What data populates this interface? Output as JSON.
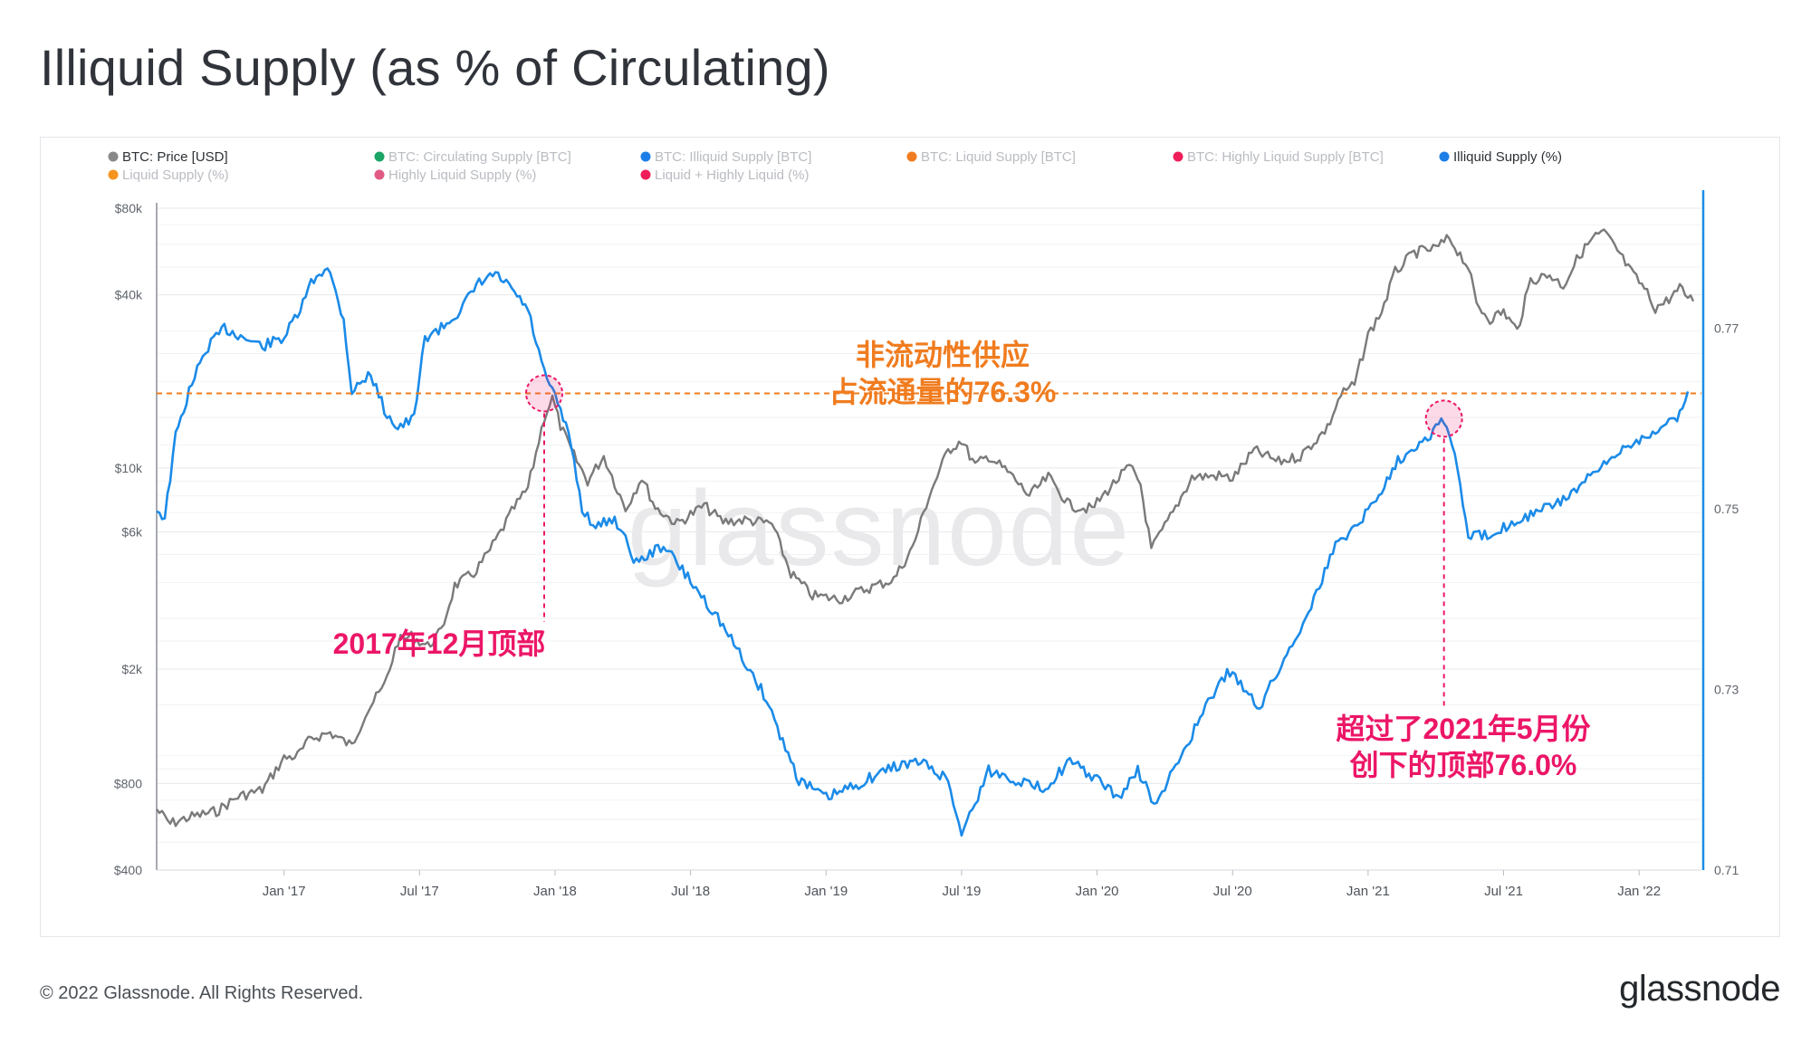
{
  "title": "Illiquid Supply (as % of Circulating)",
  "footer": {
    "copyright": "© 2022 Glassnode. All Rights Reserved.",
    "logo": "glassnode"
  },
  "chart_data": {
    "type": "line",
    "title": "Illiquid Supply (as % of Circulating)",
    "watermark": "glassnode",
    "legend": [
      {
        "label": "BTC: Price [USD]",
        "color": "#888888",
        "active": true
      },
      {
        "label": "BTC: Circulating Supply [BTC]",
        "color": "#1aa564",
        "active": false
      },
      {
        "label": "BTC: Illiquid Supply [BTC]",
        "color": "#1b7ee8",
        "active": false
      },
      {
        "label": "BTC: Liquid Supply [BTC]",
        "color": "#f07c1f",
        "active": false
      },
      {
        "label": "BTC: Highly Liquid Supply [BTC]",
        "color": "#ef1d5a",
        "active": false
      },
      {
        "label": "Illiquid Supply (%)",
        "color": "#1b7ee8",
        "active": true
      },
      {
        "label": "Liquid Supply (%)",
        "color": "#f5941f",
        "active": false
      },
      {
        "label": "Highly Liquid Supply (%)",
        "color": "#e05a83",
        "active": false
      },
      {
        "label": "Liquid + Highly Liquid (%)",
        "color": "#ef1d5a",
        "active": false
      }
    ],
    "x_ticks": [
      "Jan '17",
      "Jul '17",
      "Jan '18",
      "Jul '18",
      "Jan '19",
      "Jul '19",
      "Jan '20",
      "Jul '20",
      "Jan '21",
      "Jul '21",
      "Jan '22"
    ],
    "x_tick_years": [
      2017.0,
      2017.5,
      2018.0,
      2018.5,
      2019.0,
      2019.5,
      2020.0,
      2020.5,
      2021.0,
      2021.5,
      2022.0
    ],
    "x_range": [
      2016.53,
      2022.23
    ],
    "y_left": {
      "scale": "log",
      "range": [
        400,
        80000
      ],
      "ticks": [
        {
          "value": 400,
          "label": "$400"
        },
        {
          "value": 800,
          "label": "$800"
        },
        {
          "value": 2000,
          "label": "$2k"
        },
        {
          "value": 6000,
          "label": "$6k"
        },
        {
          "value": 10000,
          "label": "$10k"
        },
        {
          "value": 40000,
          "label": "$40k"
        },
        {
          "value": 80000,
          "label": "$80k"
        }
      ]
    },
    "y_right": {
      "scale": "linear",
      "range": [
        0.71,
        0.7833
      ],
      "ticks": [
        {
          "value": 0.71,
          "label": "0.71"
        },
        {
          "value": 0.73,
          "label": "0.73"
        },
        {
          "value": 0.75,
          "label": "0.75"
        },
        {
          "value": 0.77,
          "label": "0.77"
        }
      ]
    },
    "series": [
      {
        "name": "BTC: Price [USD]",
        "axis": "left",
        "color": "#7a7a7a",
        "points": [
          [
            2016.53,
            650
          ],
          [
            2016.58,
            580
          ],
          [
            2016.65,
            610
          ],
          [
            2016.75,
            640
          ],
          [
            2016.83,
            720
          ],
          [
            2016.92,
            760
          ],
          [
            2017.0,
            980
          ],
          [
            2017.05,
            1000
          ],
          [
            2017.1,
            1150
          ],
          [
            2017.17,
            1200
          ],
          [
            2017.25,
            1080
          ],
          [
            2017.3,
            1400
          ],
          [
            2017.37,
            1750
          ],
          [
            2017.42,
            2500
          ],
          [
            2017.47,
            2600
          ],
          [
            2017.53,
            2400
          ],
          [
            2017.58,
            2700
          ],
          [
            2017.63,
            3900
          ],
          [
            2017.7,
            4300
          ],
          [
            2017.75,
            5000
          ],
          [
            2017.8,
            6000
          ],
          [
            2017.85,
            7300
          ],
          [
            2017.9,
            8500
          ],
          [
            2017.96,
            15000
          ],
          [
            2017.99,
            17500
          ],
          [
            2018.02,
            14000
          ],
          [
            2018.06,
            11500
          ],
          [
            2018.12,
            9000
          ],
          [
            2018.18,
            11000
          ],
          [
            2018.26,
            7200
          ],
          [
            2018.32,
            9300
          ],
          [
            2018.37,
            7300
          ],
          [
            2018.45,
            6400
          ],
          [
            2018.55,
            7400
          ],
          [
            2018.62,
            6500
          ],
          [
            2018.7,
            6600
          ],
          [
            2018.8,
            6400
          ],
          [
            2018.87,
            4300
          ],
          [
            2018.95,
            3600
          ],
          [
            2019.05,
            3500
          ],
          [
            2019.15,
            3800
          ],
          [
            2019.25,
            4100
          ],
          [
            2019.32,
            5300
          ],
          [
            2019.38,
            8000
          ],
          [
            2019.45,
            11500
          ],
          [
            2019.5,
            12500
          ],
          [
            2019.55,
            10200
          ],
          [
            2019.6,
            11000
          ],
          [
            2019.68,
            9500
          ],
          [
            2019.75,
            8000
          ],
          [
            2019.82,
            9300
          ],
          [
            2019.9,
            7400
          ],
          [
            2019.98,
            7200
          ],
          [
            2020.05,
            8600
          ],
          [
            2020.12,
            10100
          ],
          [
            2020.16,
            8800
          ],
          [
            2020.2,
            5200
          ],
          [
            2020.28,
            7000
          ],
          [
            2020.35,
            9300
          ],
          [
            2020.45,
            9400
          ],
          [
            2020.5,
            9200
          ],
          [
            2020.58,
            11500
          ],
          [
            2020.67,
            10500
          ],
          [
            2020.75,
            11000
          ],
          [
            2020.85,
            13800
          ],
          [
            2020.9,
            18000
          ],
          [
            2020.95,
            19500
          ],
          [
            2021.0,
            29000
          ],
          [
            2021.05,
            35000
          ],
          [
            2021.1,
            48000
          ],
          [
            2021.17,
            56000
          ],
          [
            2021.25,
            58000
          ],
          [
            2021.3,
            63000
          ],
          [
            2021.37,
            50000
          ],
          [
            2021.4,
            37000
          ],
          [
            2021.45,
            33000
          ],
          [
            2021.5,
            35000
          ],
          [
            2021.55,
            30000
          ],
          [
            2021.6,
            45000
          ],
          [
            2021.67,
            47000
          ],
          [
            2021.72,
            43000
          ],
          [
            2021.78,
            55000
          ],
          [
            2021.83,
            63000
          ],
          [
            2021.87,
            66000
          ],
          [
            2021.92,
            57000
          ],
          [
            2021.97,
            48000
          ],
          [
            2022.02,
            42000
          ],
          [
            2022.06,
            36000
          ],
          [
            2022.1,
            38000
          ],
          [
            2022.15,
            42000
          ],
          [
            2022.2,
            38000
          ]
        ]
      },
      {
        "name": "Illiquid Supply (%)",
        "axis": "right",
        "color": "#1b8be8",
        "points": [
          [
            2016.53,
            0.75
          ],
          [
            2016.56,
            0.749
          ],
          [
            2016.6,
            0.758
          ],
          [
            2016.66,
            0.764
          ],
          [
            2016.72,
            0.768
          ],
          [
            2016.78,
            0.77
          ],
          [
            2016.85,
            0.769
          ],
          [
            2016.92,
            0.768
          ],
          [
            2017.0,
            0.769
          ],
          [
            2017.06,
            0.772
          ],
          [
            2017.1,
            0.775
          ],
          [
            2017.16,
            0.777
          ],
          [
            2017.22,
            0.771
          ],
          [
            2017.25,
            0.763
          ],
          [
            2017.32,
            0.765
          ],
          [
            2017.37,
            0.761
          ],
          [
            2017.42,
            0.759
          ],
          [
            2017.48,
            0.76
          ],
          [
            2017.52,
            0.769
          ],
          [
            2017.58,
            0.77
          ],
          [
            2017.65,
            0.772
          ],
          [
            2017.72,
            0.775
          ],
          [
            2017.78,
            0.776
          ],
          [
            2017.85,
            0.774
          ],
          [
            2017.9,
            0.772
          ],
          [
            2017.96,
            0.765
          ],
          [
            2018.02,
            0.761
          ],
          [
            2018.06,
            0.757
          ],
          [
            2018.1,
            0.75
          ],
          [
            2018.15,
            0.748
          ],
          [
            2018.22,
            0.749
          ],
          [
            2018.3,
            0.744
          ],
          [
            2018.4,
            0.746
          ],
          [
            2018.5,
            0.742
          ],
          [
            2018.6,
            0.738
          ],
          [
            2018.7,
            0.733
          ],
          [
            2018.78,
            0.729
          ],
          [
            2018.83,
            0.725
          ],
          [
            2018.9,
            0.72
          ],
          [
            2019.0,
            0.718
          ],
          [
            2019.08,
            0.719
          ],
          [
            2019.15,
            0.72
          ],
          [
            2019.25,
            0.7215
          ],
          [
            2019.35,
            0.722
          ],
          [
            2019.45,
            0.72
          ],
          [
            2019.5,
            0.714
          ],
          [
            2019.55,
            0.7175
          ],
          [
            2019.6,
            0.721
          ],
          [
            2019.7,
            0.72
          ],
          [
            2019.8,
            0.719
          ],
          [
            2019.9,
            0.722
          ],
          [
            2020.0,
            0.72
          ],
          [
            2020.08,
            0.718
          ],
          [
            2020.15,
            0.721
          ],
          [
            2020.22,
            0.717
          ],
          [
            2020.28,
            0.721
          ],
          [
            2020.35,
            0.725
          ],
          [
            2020.42,
            0.729
          ],
          [
            2020.48,
            0.732
          ],
          [
            2020.55,
            0.73
          ],
          [
            2020.6,
            0.728
          ],
          [
            2020.65,
            0.731
          ],
          [
            2020.72,
            0.735
          ],
          [
            2020.8,
            0.74
          ],
          [
            2020.88,
            0.746
          ],
          [
            2020.95,
            0.748
          ],
          [
            2021.03,
            0.751
          ],
          [
            2021.1,
            0.755
          ],
          [
            2021.17,
            0.757
          ],
          [
            2021.22,
            0.758
          ],
          [
            2021.28,
            0.76
          ],
          [
            2021.32,
            0.756
          ],
          [
            2021.37,
            0.747
          ],
          [
            2021.43,
            0.747
          ],
          [
            2021.5,
            0.748
          ],
          [
            2021.57,
            0.749
          ],
          [
            2021.65,
            0.75
          ],
          [
            2021.72,
            0.751
          ],
          [
            2021.8,
            0.753
          ],
          [
            2021.88,
            0.755
          ],
          [
            2021.95,
            0.757
          ],
          [
            2022.02,
            0.758
          ],
          [
            2022.08,
            0.759
          ],
          [
            2022.14,
            0.76
          ],
          [
            2022.18,
            0.763
          ]
        ]
      }
    ],
    "reference_line": {
      "axis": "right",
      "value": 0.7628,
      "color": "#f07c1f",
      "style": "dashed"
    },
    "markers": [
      {
        "year": 2017.96,
        "value": 0.7628,
        "axis": "right",
        "label": "2017年12月顶部"
      },
      {
        "year": 2021.28,
        "value": 0.76,
        "axis": "right",
        "label": "超过了2021年5月份创下的顶部76.0%"
      }
    ],
    "annotations": [
      {
        "lines": [
          "非流动性供应",
          "占流通量的76.3%"
        ],
        "color": "#f07c1f"
      },
      {
        "lines": [
          "2017年12月顶部"
        ],
        "color": "#ec1667"
      },
      {
        "lines": [
          "超过了2021年5月份",
          "创下的顶部76.0%"
        ],
        "color": "#ec1667"
      }
    ]
  }
}
